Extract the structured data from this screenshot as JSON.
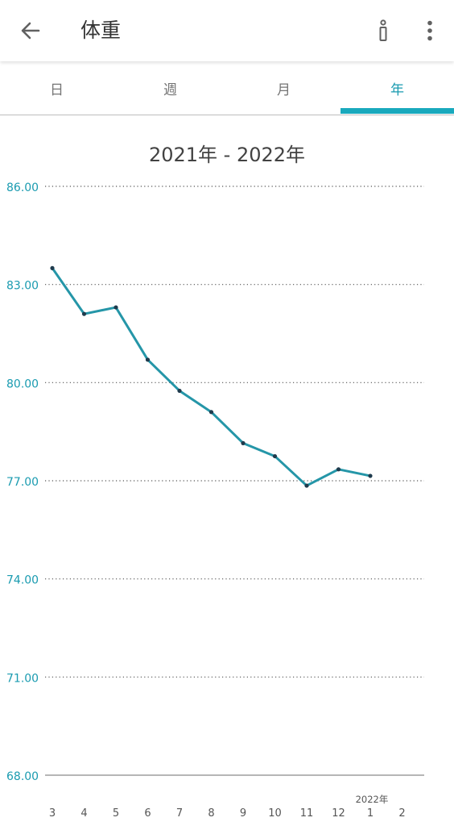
{
  "header": {
    "title": "体重",
    "back_icon": "arrow-left-icon",
    "info_icon": "info-icon",
    "more_icon": "more-vertical-icon"
  },
  "tabs": [
    {
      "label": "日",
      "active": false
    },
    {
      "label": "週",
      "active": false
    },
    {
      "label": "月",
      "active": false
    },
    {
      "label": "年",
      "active": true
    }
  ],
  "range_title": "2021年 - 2022年",
  "colors": {
    "accent": "#1a9bb0",
    "line": "#2596a8",
    "point": "#1f3b4d",
    "grid": "#555555"
  },
  "chart_data": {
    "type": "line",
    "title": "2021年 - 2022年",
    "xlabel": "",
    "ylabel": "",
    "x": [
      "3",
      "4",
      "5",
      "6",
      "7",
      "8",
      "9",
      "10",
      "11",
      "12",
      "1",
      "2"
    ],
    "x_year_marker": {
      "at": "1",
      "label": "2022年"
    },
    "y_ticks": [
      "86.00",
      "83.00",
      "80.00",
      "77.00",
      "74.00",
      "71.00",
      "68.00"
    ],
    "ylim": [
      68,
      86
    ],
    "grid": true,
    "series": [
      {
        "values": [
          83.5,
          82.1,
          82.3,
          80.7,
          79.75,
          79.1,
          78.15,
          77.75,
          76.85,
          77.35,
          77.15,
          null
        ]
      }
    ]
  }
}
